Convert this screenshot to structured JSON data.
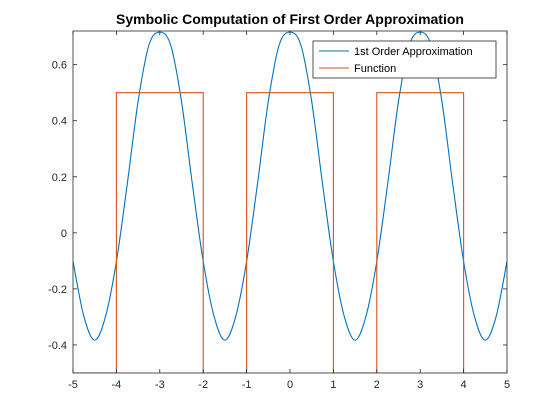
{
  "chart_data": {
    "type": "line",
    "title": "Symbolic Computation of First Order Approximation",
    "xlabel": "",
    "ylabel": "",
    "xlim": [
      -5,
      5
    ],
    "ylim": [
      -0.5,
      0.72
    ],
    "xticks": [
      -5,
      -4,
      -3,
      -2,
      -1,
      0,
      1,
      2,
      3,
      4,
      5
    ],
    "xtick_labels": [
      "-5",
      "-4",
      "-3",
      "-2",
      "-1",
      "0",
      "1",
      "2",
      "3",
      "4",
      "5"
    ],
    "yticks": [
      -0.4,
      -0.2,
      0,
      0.2,
      0.4,
      0.6
    ],
    "ytick_labels": [
      "-0.4",
      "-0.2",
      "0",
      "0.2",
      "0.4",
      "0.6"
    ],
    "grid": false,
    "legend_position": "top-right",
    "series": [
      {
        "name": "1st Order Approximation",
        "color": "#0072BD",
        "x": [
          -5,
          -4.75,
          -4.5,
          -4.25,
          -4,
          -3.75,
          -3.5,
          -3.25,
          -3,
          -2.75,
          -2.5,
          -2.25,
          -2,
          -1.75,
          -1.5,
          -1.25,
          -1,
          -0.75,
          -0.5,
          -0.25,
          0,
          0.25,
          0.5,
          0.75,
          1,
          1.25,
          1.5,
          1.75,
          2,
          2.25,
          2.5,
          2.75,
          3,
          3.25,
          3.5,
          3.75,
          4,
          4.25,
          4.5,
          4.75,
          5
        ],
        "y": [
          -0.102,
          -0.298,
          -0.383,
          -0.298,
          -0.102,
          0.174,
          0.469,
          0.67,
          0.716,
          0.67,
          0.469,
          0.174,
          -0.102,
          -0.298,
          -0.383,
          -0.298,
          -0.102,
          0.174,
          0.469,
          0.67,
          0.716,
          0.67,
          0.469,
          0.174,
          -0.102,
          -0.298,
          -0.383,
          -0.298,
          -0.102,
          0.174,
          0.469,
          0.67,
          0.716,
          0.67,
          0.469,
          0.174,
          -0.102,
          -0.298,
          -0.383,
          -0.298,
          -0.102
        ]
      },
      {
        "name": "Function",
        "color": "#D95319",
        "x": [
          -5,
          -4,
          -4,
          -2,
          -2,
          -1,
          -1,
          1,
          1,
          2,
          2,
          4,
          4,
          5
        ],
        "y": [
          -0.5,
          -0.5,
          0.5,
          0.5,
          -0.5,
          -0.5,
          0.5,
          0.5,
          -0.5,
          -0.5,
          0.5,
          0.5,
          -0.5,
          -0.5
        ]
      }
    ]
  }
}
